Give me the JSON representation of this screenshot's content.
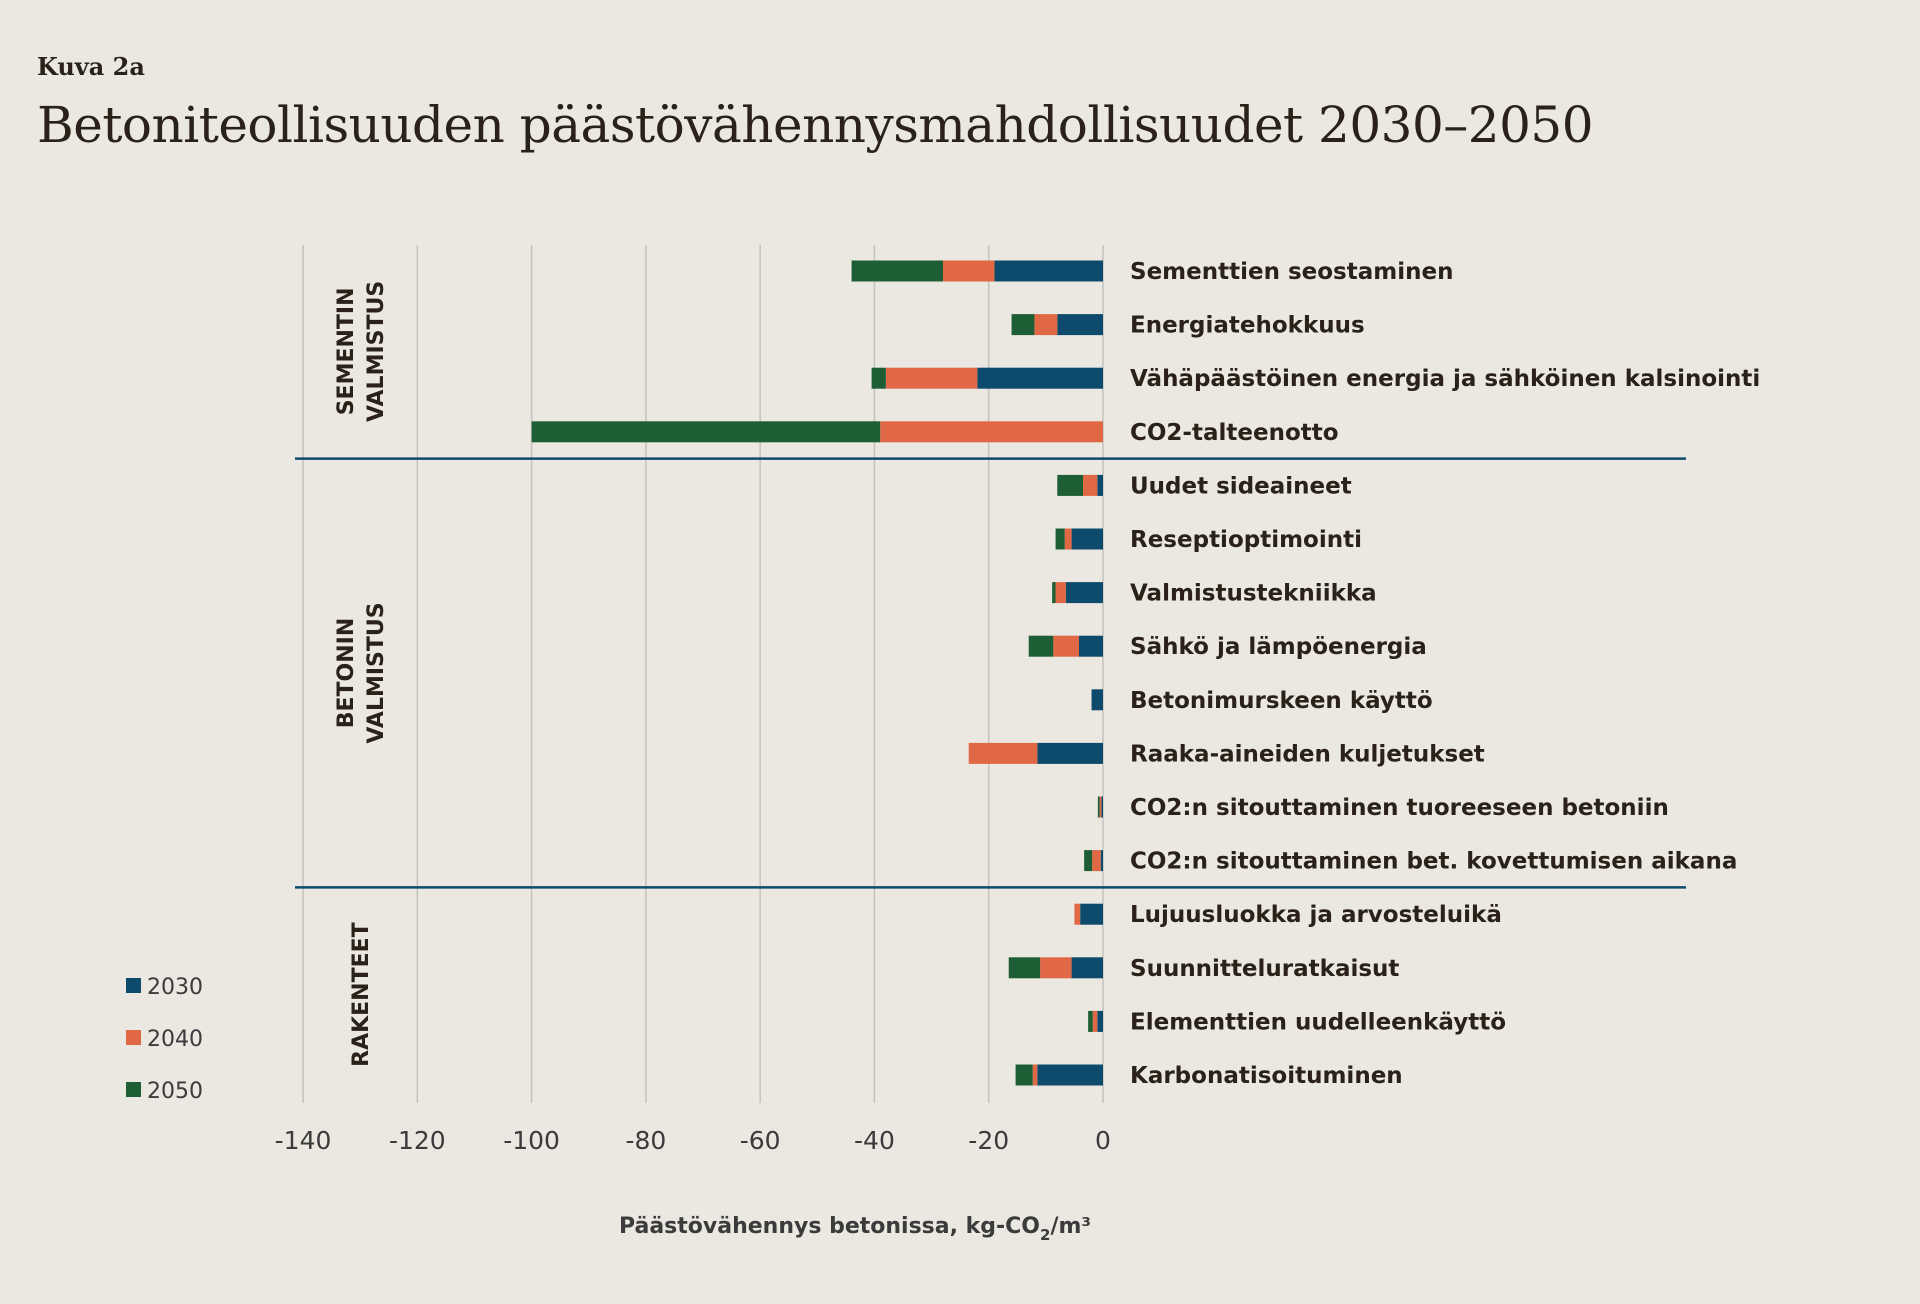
{
  "figure_label": "Kuva 2a",
  "title": "Betoniteollisuuden päästövähennysmahdollisuudet 2030–2050",
  "chart_data": {
    "type": "bar",
    "orientation": "horizontal",
    "stacked": true,
    "xlabel": "Päästövähennys betonissa, kg-CO",
    "xlabel_sub": "2",
    "xlabel_tail": "/m³",
    "xlim": [
      -140,
      0
    ],
    "xticks": [
      -140,
      -120,
      -100,
      -80,
      -60,
      -40,
      -20,
      0
    ],
    "grid": "vertical",
    "legend_position": "bottom-left",
    "groups": [
      {
        "name": "SEMENTIN VALMISTUS",
        "lines": [
          "SEMENTIN",
          "VALMISTUS"
        ],
        "start": 0,
        "count": 4
      },
      {
        "name": "BETONIN VALMISTUS",
        "lines": [
          "BETONIN",
          "VALMISTUS"
        ],
        "start": 4,
        "count": 8
      },
      {
        "name": "RAKENTEET",
        "lines": [
          "RAKENTEET"
        ],
        "start": 12,
        "count": 4
      }
    ],
    "categories": [
      "Sementtien seostaminen",
      "Energiatehokkuus",
      "Vähäpäästöinen energia ja sähköinen kalsinointi",
      "CO2-talteenotto",
      "Uudet sideaineet",
      "Reseptioptimointi",
      "Valmistustekniikka",
      "Sähkö ja lämpöenergia",
      "Betonimurskeen käyttö",
      "Raaka-aineiden kuljetukset",
      "CO2:n sitouttaminen tuoreeseen betoniin",
      "CO2:n sitouttaminen bet. kovettumisen aikana",
      "Lujuusluokka ja arvosteluikä",
      "Suunnitteluratkaisut",
      "Elementtien uudelleenkäyttö",
      "Karbonatisoituminen"
    ],
    "series": [
      {
        "name": "2030",
        "color": "#0d4a6b",
        "values": [
          -19,
          -8,
          -22,
          0,
          -1,
          -5.5,
          -6.5,
          -4.2,
          -2,
          -11.5,
          -0.3,
          -0.4,
          -4,
          -5.5,
          -1,
          -11.5
        ]
      },
      {
        "name": "2040",
        "color": "#e06844",
        "values": [
          -9,
          -4,
          -16,
          -39,
          -2.5,
          -1.2,
          -1.8,
          -4.5,
          0,
          -12,
          -0.3,
          -1.5,
          -1,
          -5.5,
          -0.8,
          -0.8
        ]
      },
      {
        "name": "2050",
        "color": "#1e5e35",
        "values": [
          -16,
          -4,
          -2.5,
          -61,
          -4.5,
          -1.6,
          -0.6,
          -4.3,
          0,
          0,
          -0.3,
          -1.4,
          0,
          -5.5,
          -0.8,
          -3
        ]
      }
    ]
  }
}
